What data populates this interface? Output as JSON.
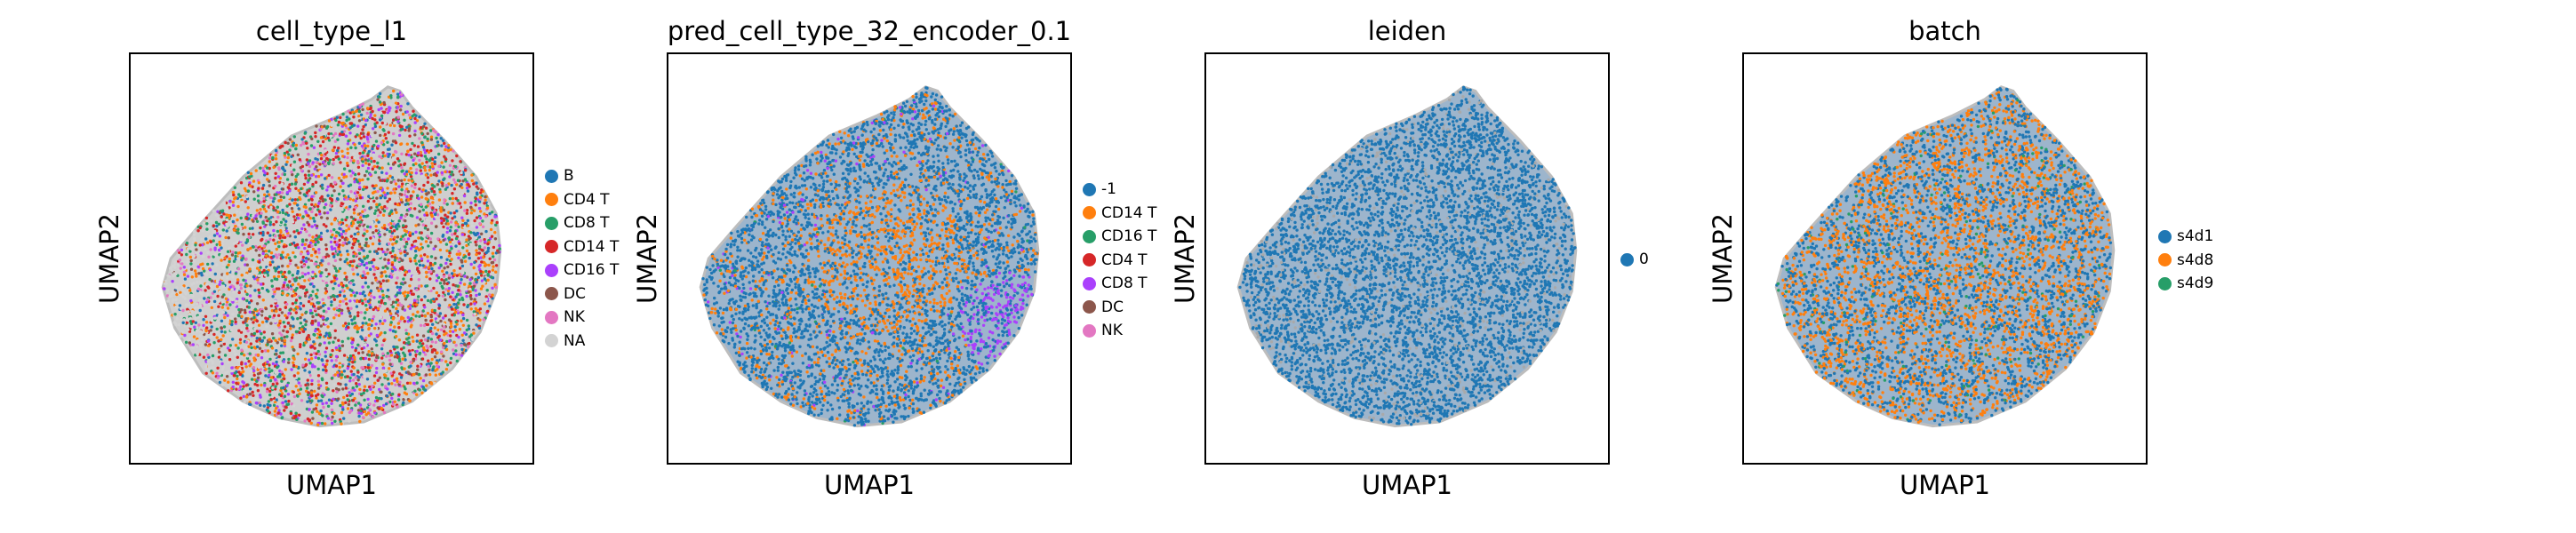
{
  "chart_data": [
    {
      "type": "scatter",
      "title": "cell_type_l1",
      "xlabel": "UMAP1",
      "ylabel": "UMAP2",
      "grid": false,
      "legend_position": "right",
      "legend": [
        {
          "name": "B",
          "color": "#1f77b4"
        },
        {
          "name": "CD4 T",
          "color": "#ff7f0e"
        },
        {
          "name": "CD8 T",
          "color": "#279e68"
        },
        {
          "name": "CD14 T",
          "color": "#d62728"
        },
        {
          "name": "CD16 T",
          "color": "#aa40fc"
        },
        {
          "name": "DC",
          "color": "#8c564b"
        },
        {
          "name": "NK",
          "color": "#e377c2"
        },
        {
          "name": "NA",
          "color": "#d3d3d3"
        }
      ]
    },
    {
      "type": "scatter",
      "title": "pred_cell_type_32_encoder_0.1",
      "xlabel": "UMAP1",
      "ylabel": "UMAP2",
      "grid": false,
      "legend_position": "right",
      "legend": [
        {
          "name": "-1",
          "color": "#1f77b4"
        },
        {
          "name": "CD14 T",
          "color": "#ff7f0e"
        },
        {
          "name": "CD16 T",
          "color": "#279e68"
        },
        {
          "name": "CD4 T",
          "color": "#d62728"
        },
        {
          "name": "CD8 T",
          "color": "#aa40fc"
        },
        {
          "name": "DC",
          "color": "#8c564b"
        },
        {
          "name": "NK",
          "color": "#e377c2"
        }
      ]
    },
    {
      "type": "scatter",
      "title": "leiden",
      "xlabel": "UMAP1",
      "ylabel": "UMAP2",
      "grid": false,
      "legend_position": "right",
      "legend": [
        {
          "name": "0",
          "color": "#1f77b4"
        }
      ]
    },
    {
      "type": "scatter",
      "title": "batch",
      "xlabel": "UMAP1",
      "ylabel": "UMAP2",
      "grid": false,
      "legend_position": "right",
      "legend": [
        {
          "name": "s4d1",
          "color": "#1f77b4"
        },
        {
          "name": "s4d8",
          "color": "#ff7f0e"
        },
        {
          "name": "s4d9",
          "color": "#279e68"
        }
      ]
    }
  ]
}
